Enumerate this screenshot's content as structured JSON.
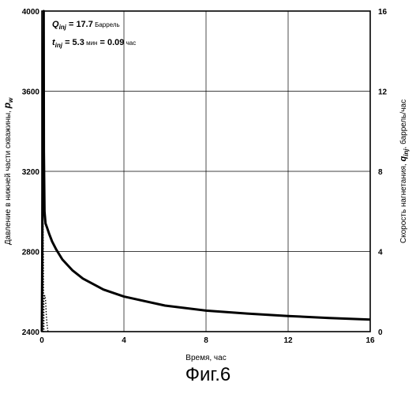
{
  "chart_data": {
    "type": "line",
    "x_label": "Время, час",
    "y_left_label": "Давление в нижней части скважины, ",
    "y_left_label_symbol": "p",
    "y_left_label_sub": "w",
    "y_right_label_prefix": "Скорость нагнетания, ",
    "y_right_label_symbol": "q",
    "y_right_label_sub": "inj",
    "y_right_label_suffix": ", баррель/час",
    "x_range": [
      0,
      16
    ],
    "y_left_range": [
      2400,
      4000
    ],
    "y_right_range": [
      0,
      16
    ],
    "x_ticks": [
      "0",
      "4",
      "8",
      "12",
      "16"
    ],
    "y_left_ticks": [
      "2400",
      "2800",
      "3200",
      "3600",
      "4000"
    ],
    "y_right_ticks": [
      "0",
      "4",
      "8",
      "12",
      "16"
    ],
    "grid": true,
    "annotation": {
      "q_symbol": "Q",
      "q_sub": "inj",
      "q_value": " = 17.7",
      "q_unit": " Баррель",
      "t_symbol": "t",
      "t_sub": "inj",
      "t_value": " = 5.3",
      "t_unit": " мин",
      "t_eq": " = 0.09",
      "t_unit2": " час"
    },
    "series": [
      {
        "axis": "left",
        "style": "solid-thick",
        "x": [
          0.0,
          0.03,
          0.06,
          0.09,
          0.1,
          0.13,
          0.18,
          0.25,
          0.35,
          0.5,
          0.7,
          1.0,
          1.5,
          2.0,
          3.0,
          4.0,
          6.0,
          8.0,
          10.0,
          12.0,
          14.0,
          16.0
        ],
        "y": [
          2400,
          2950,
          3500,
          4000,
          3300,
          3000,
          2940,
          2920,
          2890,
          2850,
          2810,
          2760,
          2705,
          2665,
          2610,
          2575,
          2530,
          2505,
          2490,
          2478,
          2468,
          2460
        ]
      },
      {
        "axis": "right",
        "style": "dotted",
        "x": [
          0.0,
          0.01,
          0.02,
          0.04,
          0.06,
          0.08,
          0.09,
          0.1,
          0.1,
          0.14,
          0.18,
          0.22,
          0.26,
          0.3
        ],
        "y": [
          0.0,
          1.5,
          5.0,
          5.6,
          5.4,
          3.5,
          0.0,
          0.0,
          1.5,
          1.8,
          1.6,
          0.8,
          0.3,
          0.0
        ]
      }
    ]
  },
  "caption": "Фиг.6"
}
